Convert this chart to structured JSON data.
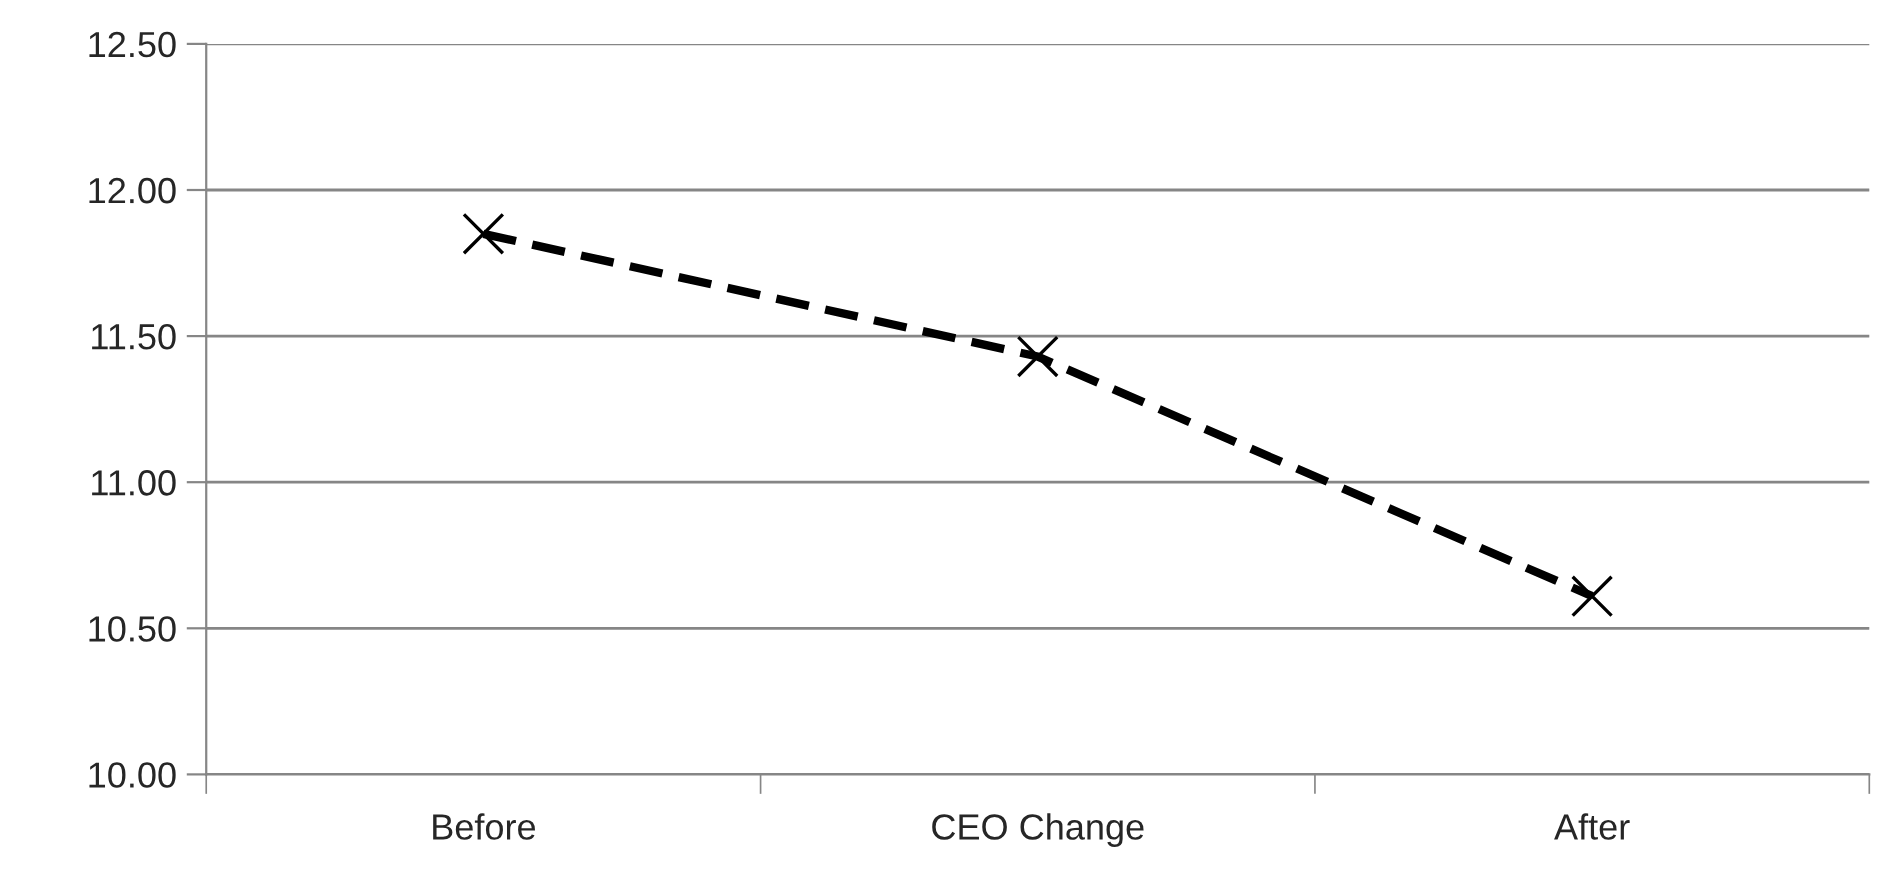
{
  "chart_data": {
    "type": "line",
    "categories": [
      "Before",
      "CEO Change",
      "After"
    ],
    "series": [
      {
        "color": "#000000",
        "values": [
          11.85,
          11.43,
          10.61
        ]
      }
    ],
    "ylim": [
      10.0,
      12.5
    ],
    "yticks": [
      {
        "value": 10.0,
        "label": "10.00"
      },
      {
        "value": 10.5,
        "label": "10.50"
      },
      {
        "value": 11.0,
        "label": "11.00"
      },
      {
        "value": 11.5,
        "label": "11.50"
      },
      {
        "value": 12.0,
        "label": "12.00"
      },
      {
        "value": 12.5,
        "label": "12.50"
      }
    ],
    "grid": "y",
    "marker": "cross",
    "line_style": "dashed"
  }
}
